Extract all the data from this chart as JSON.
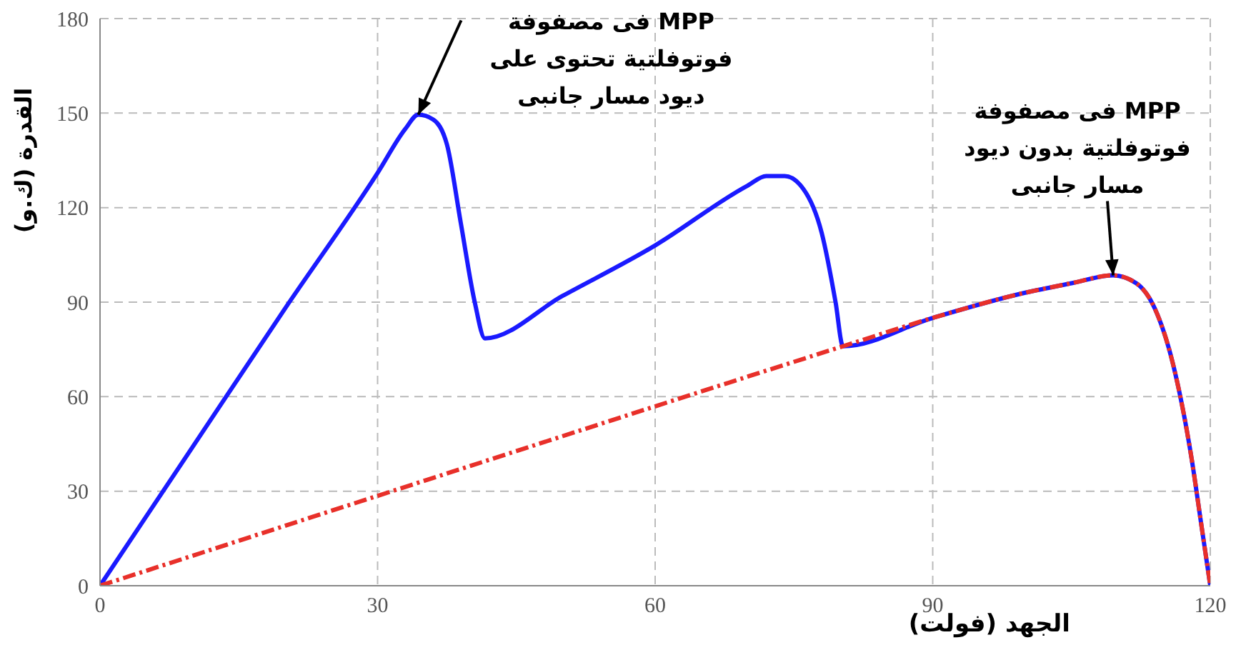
{
  "chart_data": {
    "type": "line",
    "xlabel": "الجهد (فولت)",
    "ylabel": "القدرة (ك.و)",
    "xlim": [
      0,
      120
    ],
    "xticks": [
      0,
      30,
      60,
      90,
      120
    ],
    "ylim": [
      0,
      180
    ],
    "yticks": [
      0,
      30,
      60,
      90,
      120,
      150,
      180
    ],
    "grid": true,
    "series": [
      {
        "color": "#1a1aff",
        "line_style": "solid",
        "x": [
          0,
          10,
          20,
          30,
          33,
          34.4,
          36,
          37.5,
          39,
          40.5,
          41.6,
          50,
          60,
          70,
          72,
          74,
          76,
          78,
          79.5,
          80.3,
          90,
          100,
          105,
          109.5,
          112,
          114,
          116,
          118,
          119,
          120
        ],
        "values": [
          0,
          44,
          88,
          131,
          145,
          149.5,
          148,
          140,
          115,
          90,
          78.5,
          92,
          108,
          127,
          130,
          130,
          126,
          112,
          90,
          76,
          85,
          93,
          96,
          98.5,
          96,
          88,
          70,
          40,
          20,
          0
        ]
      },
      {
        "color": "#e8302a",
        "line_style": "dashed",
        "x": [
          0,
          40,
          80.3,
          90,
          100,
          105,
          109.5,
          112,
          114,
          116,
          118,
          119,
          120
        ],
        "values": [
          0,
          38,
          76,
          85,
          93,
          96,
          98.5,
          96,
          88,
          70,
          40,
          20,
          0
        ]
      }
    ],
    "annotations": [
      {
        "text": "MPP فى مصفوفة\nفوتوفلتية تحتوى على\nديود مسار جانبى",
        "x": 34.4,
        "y": 149.5
      },
      {
        "text": "MPP فى مصفوفة\nفوتوفلتية بدون ديود\nمسار جانبى",
        "x": 109.5,
        "y": 98.5
      }
    ]
  }
}
